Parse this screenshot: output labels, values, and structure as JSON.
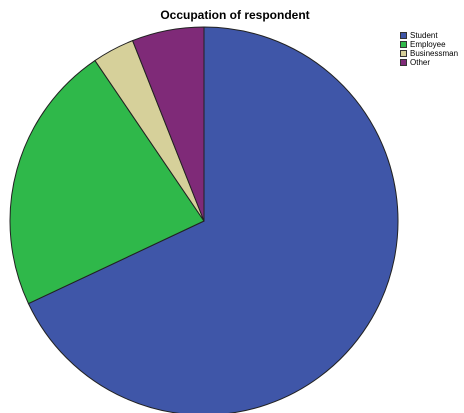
{
  "chart_data": {
    "type": "pie",
    "title": "Occupation of respondent",
    "categories": [
      "Student",
      "Employee",
      "Businessman",
      "Other"
    ],
    "values": [
      68,
      22.5,
      3.5,
      6
    ],
    "colors": [
      "#3f56a8",
      "#2fb84a",
      "#d6d09a",
      "#7f2a78"
    ],
    "start": "top",
    "direction": "clockwise",
    "legend_position": "top-right"
  }
}
